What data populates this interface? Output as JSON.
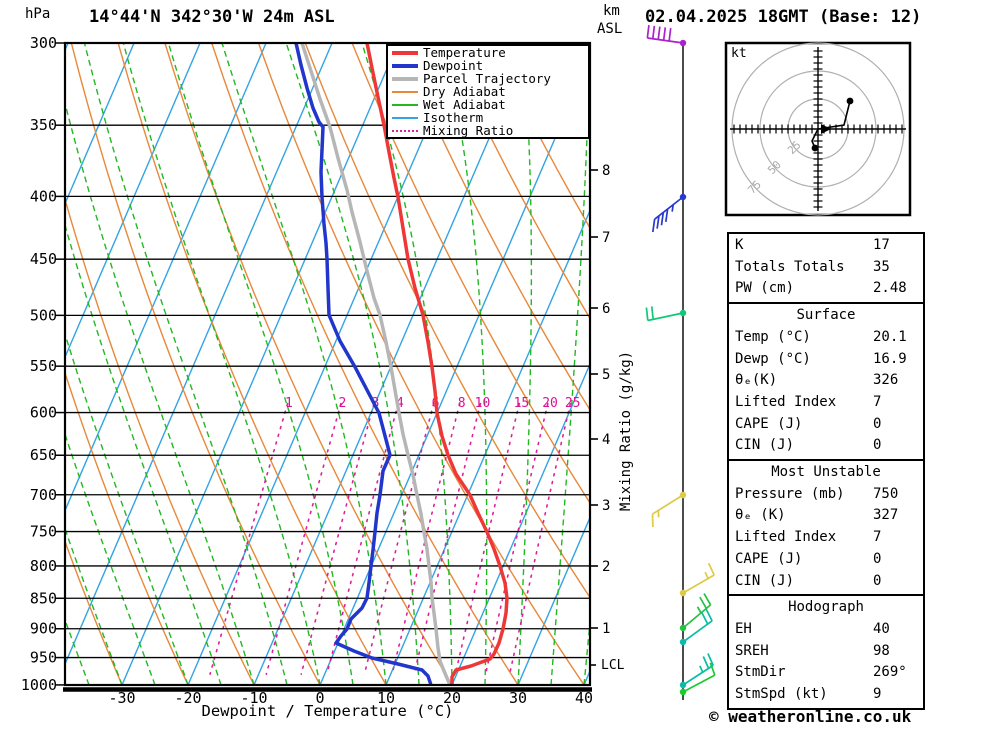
{
  "header": {
    "pressure_unit": "hPa",
    "title": "14°44'N 342°30'W 24m ASL",
    "datetime": "02.04.2025 18GMT (Base: 12)",
    "alt_unit_km": "km",
    "alt_unit_asl": "ASL"
  },
  "axes": {
    "pressure_ticks": [
      300,
      350,
      400,
      450,
      500,
      550,
      600,
      650,
      700,
      750,
      800,
      850,
      900,
      950,
      1000
    ],
    "temp_ticks": [
      -30,
      -20,
      -10,
      0,
      10,
      20,
      30,
      40
    ],
    "x_label": "Dewpoint / Temperature (°C)",
    "mr_axis_label": "Mixing Ratio (g/kg)",
    "mixing_ratio_values": [
      1,
      2,
      3,
      4,
      6,
      8,
      10,
      15,
      20,
      25
    ],
    "km_ticks": [
      {
        "label": "8",
        "y": 170
      },
      {
        "label": "7",
        "y": 237
      },
      {
        "label": "6",
        "y": 308
      },
      {
        "label": "5",
        "y": 374
      },
      {
        "label": "4",
        "y": 439
      },
      {
        "label": "3",
        "y": 505
      },
      {
        "label": "2",
        "y": 566
      },
      {
        "label": "1",
        "y": 628
      }
    ],
    "lcl_label": "LCL",
    "lcl_y": 665
  },
  "legend": [
    {
      "label": "Temperature",
      "color": "#ee3838",
      "thick": 4,
      "dash": "solid"
    },
    {
      "label": "Dewpoint",
      "color": "#2236cc",
      "thick": 4,
      "dash": "solid"
    },
    {
      "label": "Parcel Trajectory",
      "color": "#b6b6b6",
      "thick": 4,
      "dash": "solid"
    },
    {
      "label": "Dry Adiabat",
      "color": "#e8883a",
      "thick": 2,
      "dash": "solid"
    },
    {
      "label": "Wet Adiabat",
      "color": "#22b822",
      "thick": 2,
      "dash": "solid"
    },
    {
      "label": "Isotherm",
      "color": "#33a3e3",
      "thick": 2,
      "dash": "solid"
    },
    {
      "label": "Mixing Ratio",
      "color": "#dd2299",
      "thick": 2,
      "dash": "dotted"
    }
  ],
  "colors": {
    "temperature": "#ee3838",
    "dewpoint": "#2236cc",
    "parcel": "#b6b6b6",
    "dry_adiabat": "#e8883a",
    "wet_adiabat": "#22b822",
    "isotherm": "#33a3e3",
    "mixing_ratio": "#dd2299",
    "mixing_label": "#dd1199",
    "axis": "#000000",
    "hodo_ring": "#b0b0b0",
    "hodo_ring_label": "#aaaaaa"
  },
  "curves": {
    "temperature": [
      [
        367,
        43
      ],
      [
        372,
        68
      ],
      [
        378,
        97
      ],
      [
        384,
        125
      ],
      [
        389,
        152
      ],
      [
        394,
        178
      ],
      [
        398,
        197
      ],
      [
        403,
        228
      ],
      [
        408,
        259
      ],
      [
        415,
        288
      ],
      [
        423,
        315
      ],
      [
        428,
        342
      ],
      [
        432,
        367
      ],
      [
        435,
        391
      ],
      [
        437,
        413
      ],
      [
        442,
        436
      ],
      [
        448,
        455
      ],
      [
        456,
        474
      ],
      [
        470,
        495
      ],
      [
        478,
        513
      ],
      [
        487,
        532
      ],
      [
        494,
        549
      ],
      [
        500,
        566
      ],
      [
        505,
        583
      ],
      [
        507,
        598
      ],
      [
        506,
        613
      ],
      [
        503,
        629
      ],
      [
        499,
        643
      ],
      [
        494,
        654
      ],
      [
        490,
        659
      ],
      [
        471,
        666
      ],
      [
        456,
        670
      ],
      [
        452,
        677
      ],
      [
        452,
        685
      ]
    ],
    "dewpoint": [
      [
        296,
        43
      ],
      [
        301,
        65
      ],
      [
        307,
        88
      ],
      [
        313,
        108
      ],
      [
        319,
        122
      ],
      [
        323,
        127
      ],
      [
        322,
        150
      ],
      [
        321,
        172
      ],
      [
        322,
        197
      ],
      [
        324,
        224
      ],
      [
        326,
        243
      ],
      [
        327,
        259
      ],
      [
        328,
        288
      ],
      [
        329,
        315
      ],
      [
        340,
        341
      ],
      [
        355,
        367
      ],
      [
        367,
        390
      ],
      [
        379,
        413
      ],
      [
        384,
        432
      ],
      [
        390,
        455
      ],
      [
        383,
        471
      ],
      [
        380,
        495
      ],
      [
        377,
        513
      ],
      [
        375,
        532
      ],
      [
        373,
        550
      ],
      [
        371,
        566
      ],
      [
        369,
        583
      ],
      [
        367,
        598
      ],
      [
        362,
        608
      ],
      [
        351,
        619
      ],
      [
        347,
        629
      ],
      [
        341,
        636
      ],
      [
        336,
        643
      ],
      [
        354,
        651
      ],
      [
        372,
        658
      ],
      [
        398,
        664
      ],
      [
        422,
        670
      ],
      [
        428,
        676
      ],
      [
        431,
        685
      ]
    ],
    "parcel": [
      [
        302,
        43
      ],
      [
        311,
        71
      ],
      [
        320,
        99
      ],
      [
        330,
        127
      ],
      [
        338,
        158
      ],
      [
        347,
        190
      ],
      [
        352,
        212
      ],
      [
        360,
        242
      ],
      [
        367,
        271
      ],
      [
        374,
        298
      ],
      [
        380,
        315
      ],
      [
        386,
        342
      ],
      [
        391,
        367
      ],
      [
        395,
        390
      ],
      [
        399,
        413
      ],
      [
        403,
        434
      ],
      [
        408,
        455
      ],
      [
        413,
        475
      ],
      [
        417,
        495
      ],
      [
        421,
        514
      ],
      [
        424,
        532
      ],
      [
        427,
        549
      ],
      [
        429,
        566
      ],
      [
        431,
        582
      ],
      [
        432,
        598
      ],
      [
        434,
        613
      ],
      [
        436,
        629
      ],
      [
        438,
        648
      ],
      [
        440,
        661
      ],
      [
        444,
        671
      ],
      [
        450,
        685
      ]
    ]
  },
  "wind_barbs": [
    {
      "y": 43,
      "color": "#aa22cc",
      "angle": 172,
      "tick_angle": 83,
      "full": 5,
      "half": 0
    },
    {
      "y": 197,
      "color": "#2838d0",
      "angle": 218,
      "tick_angle": 262,
      "full": 4,
      "half": 1
    },
    {
      "y": 313,
      "color": "#10c878",
      "angle": 192,
      "tick_angle": 96,
      "full": 2,
      "half": 0
    },
    {
      "y": 495,
      "color": "#ddca45",
      "angle": 212,
      "tick_angle": 272,
      "full": 1,
      "half": 1
    },
    {
      "y": 593,
      "color": "#ddca45",
      "angle": 30,
      "tick_angle": 115,
      "full": 1,
      "half": 1
    },
    {
      "y": 628,
      "color": "#22c33e",
      "angle": 40,
      "tick_angle": 120,
      "full": 2,
      "half": 1
    },
    {
      "y": 642,
      "color": "#0abca6",
      "angle": 36,
      "tick_angle": 117,
      "full": 2,
      "half": 0
    },
    {
      "y": 685,
      "color": "#0abca6",
      "angle": 33,
      "tick_angle": 114,
      "full": 2,
      "half": 1
    },
    {
      "y": 692,
      "color": "#18cc30",
      "angle": 28,
      "tick_angle": 110,
      "full": 1,
      "half": 0
    }
  ],
  "hodograph": {
    "kt_label": "kt",
    "ring_labels": [
      "25",
      "50",
      "75"
    ],
    "trace_upper": [
      [
        818,
        129
      ],
      [
        844,
        125
      ],
      [
        850,
        101
      ]
    ],
    "trace_lower": [
      [
        818,
        129
      ],
      [
        812,
        141
      ],
      [
        815,
        148
      ]
    ],
    "dots": [
      [
        850,
        101
      ],
      [
        815,
        148
      ]
    ],
    "arrow": [
      [
        821,
        124
      ],
      [
        821,
        134
      ],
      [
        831,
        129
      ]
    ]
  },
  "stats": {
    "sections": [
      {
        "title": "",
        "rows": [
          [
            "K",
            "17"
          ],
          [
            "Totals Totals",
            "35"
          ],
          [
            "PW (cm)",
            "2.48"
          ]
        ]
      },
      {
        "title": "Surface",
        "rows": [
          [
            "Temp (°C)",
            "20.1"
          ],
          [
            "Dewp (°C)",
            "16.9"
          ],
          [
            "θₑ(K)",
            "326"
          ],
          [
            "Lifted Index",
            "7"
          ],
          [
            "CAPE (J)",
            "0"
          ],
          [
            "CIN (J)",
            "0"
          ]
        ]
      },
      {
        "title": "Most Unstable",
        "rows": [
          [
            "Pressure (mb)",
            "750"
          ],
          [
            "θₑ (K)",
            "327"
          ],
          [
            "Lifted Index",
            "7"
          ],
          [
            "CAPE (J)",
            "0"
          ],
          [
            "CIN (J)",
            "0"
          ]
        ]
      },
      {
        "title": "Hodograph",
        "rows": [
          [
            "EH",
            "40"
          ],
          [
            "SREH",
            "98"
          ],
          [
            "StmDir",
            "269°"
          ],
          [
            "StmSpd (kt)",
            "9"
          ]
        ]
      }
    ]
  },
  "footer": {
    "copyright": "© weatheronline.co.uk"
  },
  "chart_data": {
    "type": "line",
    "variant": "skew-t log-p sounding",
    "title": "14°44'N 342°30'W 24m ASL",
    "subtitle": "02.04.2025 18GMT (Base: 12)",
    "xlabel": "Dewpoint / Temperature (°C)",
    "ylabel": "hPa",
    "x_range": [
      -40,
      40
    ],
    "pressure_levels_hpa": [
      1000,
      950,
      900,
      850,
      800,
      750,
      700,
      650,
      600,
      550,
      500,
      450,
      400,
      350,
      300
    ],
    "series": [
      {
        "name": "Temperature (°C)",
        "values": [
          20.1,
          23.9,
          24.0,
          22.6,
          19.6,
          15.1,
          10.1,
          4.9,
          0.4,
          -3.4,
          -8.1,
          -13.9,
          -19.5,
          -26.1,
          -34.0
        ]
      },
      {
        "name": "Dewpoint (°C)",
        "values": [
          16.9,
          5.8,
          0.4,
          1.4,
          0.0,
          -1.6,
          -3.0,
          -4.1,
          -8.4,
          -15.1,
          -22.3,
          -26.2,
          -31.0,
          -35.3,
          -44.7
        ]
      },
      {
        "name": "Parcel Trajectory (°C)",
        "values": [
          20.1,
          15.8,
          13.4,
          11.1,
          8.7,
          5.7,
          2.2,
          -1.7,
          -5.3,
          -9.5,
          -14.5,
          -20.5,
          -26.9,
          -34.2,
          -43.8
        ]
      }
    ],
    "indices": {
      "K": 17,
      "Totals_Totals": 35,
      "PW_cm": 2.48,
      "surface": {
        "temp_c": 20.1,
        "dewp_c": 16.9,
        "theta_e_k": 326,
        "lifted_index": 7,
        "cape_j": 0,
        "cin_j": 0
      },
      "most_unstable": {
        "pressure_mb": 750,
        "theta_e_k": 327,
        "lifted_index": 7,
        "cape_j": 0,
        "cin_j": 0
      },
      "hodograph": {
        "EH": 40,
        "SREH": 98,
        "StmDir_deg": 269,
        "StmSpd_kt": 9
      }
    },
    "mixing_ratio_lines_g_kg": [
      1,
      2,
      3,
      4,
      6,
      8,
      10,
      15,
      20,
      25
    ],
    "legend_position": "top-right",
    "grid": true
  }
}
